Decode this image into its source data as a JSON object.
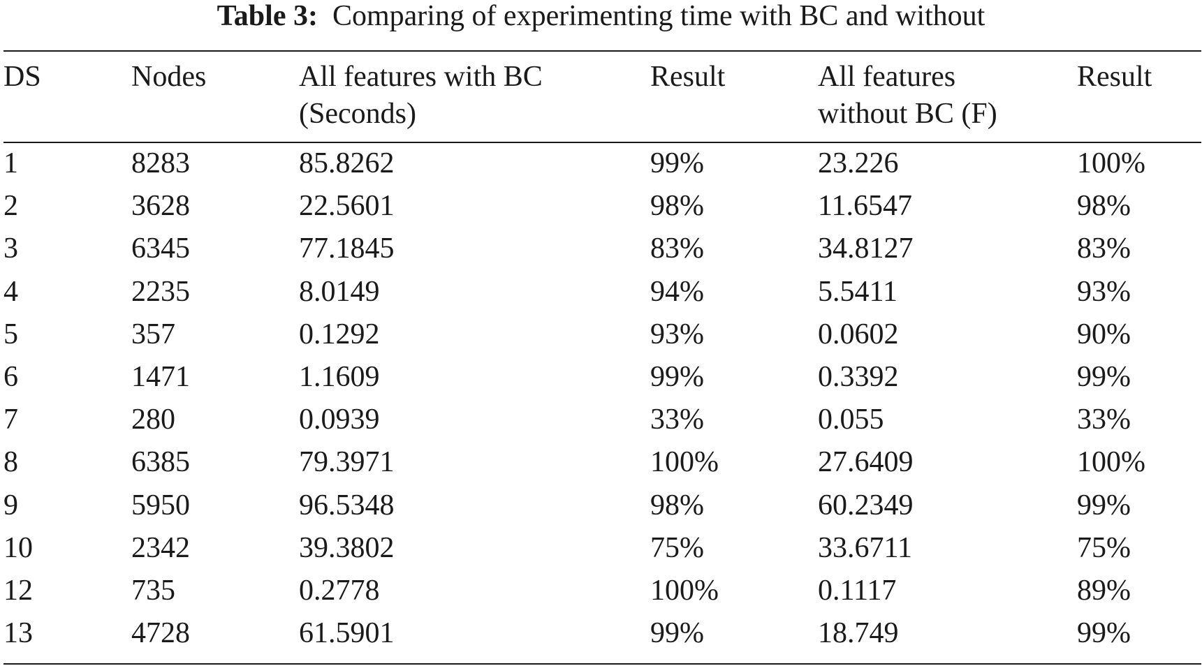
{
  "caption": {
    "label": "Table 3:",
    "text": "Comparing of experimenting time with BC and without"
  },
  "columns": [
    [
      "DS"
    ],
    [
      "Nodes"
    ],
    [
      "All features with BC",
      "(Seconds)"
    ],
    [
      "Result"
    ],
    [
      "All features",
      "without BC (F)"
    ],
    [
      "Result"
    ]
  ],
  "rows": [
    [
      "1",
      "8283",
      "85.8262",
      "99%",
      "23.226",
      "100%"
    ],
    [
      "2",
      "3628",
      "22.5601",
      "98%",
      "11.6547",
      "98%"
    ],
    [
      "3",
      "6345",
      "77.1845",
      "83%",
      "34.8127",
      "83%"
    ],
    [
      "4",
      "2235",
      "8.0149",
      "94%",
      "5.5411",
      "93%"
    ],
    [
      "5",
      "357",
      "0.1292",
      "93%",
      "0.0602",
      "90%"
    ],
    [
      "6",
      "1471",
      "1.1609",
      "99%",
      "0.3392",
      "99%"
    ],
    [
      "7",
      "280",
      "0.0939",
      "33%",
      "0.055",
      "33%"
    ],
    [
      "8",
      "6385",
      "79.3971",
      "100%",
      "27.6409",
      "100%"
    ],
    [
      "9",
      "5950",
      "96.5348",
      "98%",
      "60.2349",
      "99%"
    ],
    [
      "10",
      "2342",
      "39.3802",
      "75%",
      "33.6711",
      "75%"
    ],
    [
      "12",
      "735",
      "0.2778",
      "100%",
      "0.1117",
      "89%"
    ],
    [
      "13",
      "4728",
      "61.5901",
      "99%",
      "18.749",
      "99%"
    ]
  ]
}
